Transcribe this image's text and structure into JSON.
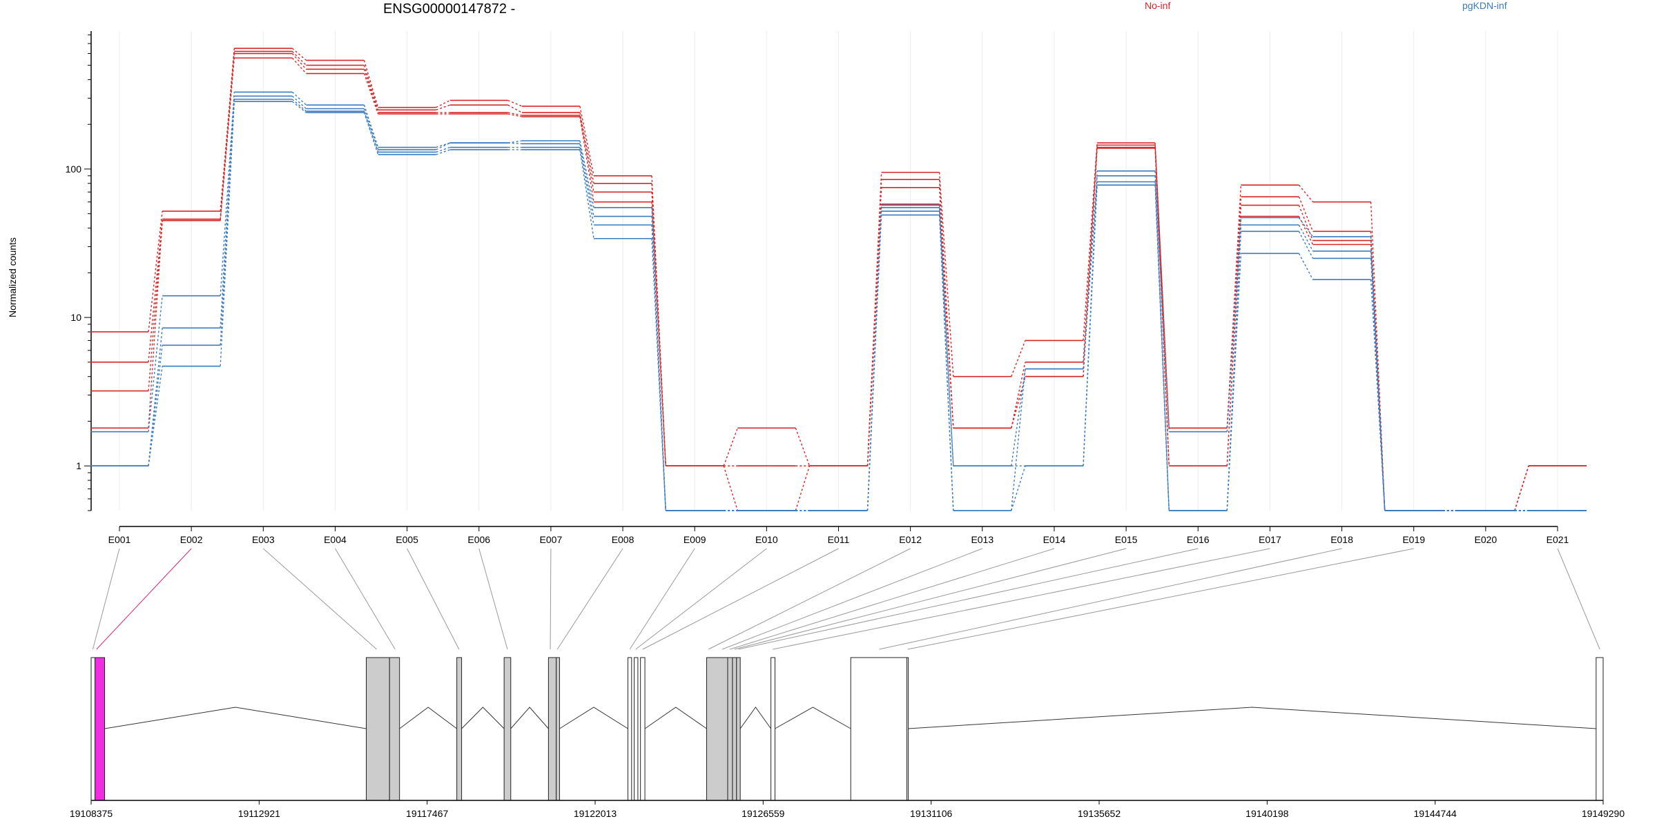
{
  "chart_data": {
    "type": "line",
    "title": "ENSG00000147872 -",
    "ylabel": "Normalized counts",
    "xlabel": "",
    "yscale": "log",
    "ylim": [
      0.5,
      850
    ],
    "y_ticks": [
      1,
      10,
      100
    ],
    "y_tick_labels": [
      "1",
      "10",
      "100"
    ],
    "grid": "vertical gridlines",
    "legend_position": "top",
    "categories": [
      "E001",
      "E002",
      "E003",
      "E004",
      "E005",
      "E006",
      "E007",
      "E008",
      "E009",
      "E010",
      "E011",
      "E012",
      "E013",
      "E014",
      "E015",
      "E016",
      "E017",
      "E018",
      "E019",
      "E020",
      "E021"
    ],
    "groups": [
      {
        "name": "No-inf",
        "color": "#d62728"
      },
      {
        "name": "pgKDN-inf",
        "color": "#3a7bbf"
      }
    ],
    "series": [
      {
        "group": "No-inf",
        "values": [
          8,
          52,
          650,
          540,
          260,
          290,
          265,
          90,
          1,
          1.8,
          1,
          95,
          4,
          7,
          150,
          1.8,
          78,
          60,
          0.5,
          0.5,
          1
        ]
      },
      {
        "group": "No-inf",
        "values": [
          5,
          46,
          620,
          500,
          250,
          270,
          240,
          80,
          1,
          1,
          1,
          85,
          1.8,
          5,
          145,
          1.8,
          65,
          38,
          0.5,
          0.5,
          1
        ]
      },
      {
        "group": "No-inf",
        "values": [
          3.2,
          45,
          600,
          470,
          240,
          240,
          230,
          70,
          1,
          1,
          1,
          75,
          1.8,
          4,
          140,
          1,
          57,
          33,
          0.5,
          0.5,
          1
        ]
      },
      {
        "group": "No-inf",
        "values": [
          1.8,
          45,
          560,
          440,
          235,
          235,
          225,
          60,
          1,
          0.5,
          1,
          58,
          1.8,
          4,
          138,
          1,
          48,
          31,
          0.5,
          0.5,
          1
        ]
      },
      {
        "group": "pgKDN-inf",
        "values": [
          1.7,
          14,
          330,
          270,
          140,
          150,
          155,
          55,
          0.5,
          0.5,
          0.5,
          57,
          1,
          1,
          97,
          1.7,
          47,
          35,
          0.5,
          0.5,
          0.5
        ]
      },
      {
        "group": "pgKDN-inf",
        "values": [
          1,
          8.5,
          310,
          255,
          135,
          150,
          148,
          48,
          0.5,
          0.5,
          0.5,
          55,
          1,
          4.5,
          90,
          0.5,
          42,
          28,
          0.5,
          0.5,
          0.5
        ]
      },
      {
        "group": "pgKDN-inf",
        "values": [
          1,
          6.5,
          295,
          245,
          130,
          140,
          140,
          42,
          0.5,
          0.5,
          0.5,
          52,
          0.5,
          4.5,
          82,
          0.5,
          38,
          25,
          0.5,
          0.5,
          0.5
        ]
      },
      {
        "group": "pgKDN-inf",
        "values": [
          1,
          4.7,
          285,
          240,
          125,
          135,
          135,
          34,
          0.5,
          0.5,
          0.5,
          49,
          0.5,
          1,
          78,
          0.5,
          27,
          18,
          0.5,
          0.5,
          0.5
        ]
      }
    ],
    "genomic_axis": {
      "range": [
        19108375,
        19149290
      ],
      "tick_labels": [
        "19108375",
        "19112921",
        "19117467",
        "19122013",
        "19126559",
        "19131106",
        "19135652",
        "19140198",
        "19144744",
        "19149290"
      ]
    },
    "gene_model": {
      "exons": [
        {
          "start": 19108375,
          "end": 19108480,
          "fill": "#ffffff",
          "exon_ids": [
            "E001"
          ]
        },
        {
          "start": 19108480,
          "end": 19108740,
          "fill": "#ee2ee0",
          "exon_ids": [
            "E002"
          ]
        },
        {
          "start": 19115820,
          "end": 19116450,
          "fill": "#cccccc",
          "exon_ids": [
            "E003"
          ]
        },
        {
          "start": 19116450,
          "end": 19116720,
          "fill": "#cccccc",
          "exon_ids": [
            "E004"
          ]
        },
        {
          "start": 19118270,
          "end": 19118400,
          "fill": "#cccccc",
          "exon_ids": [
            "E005"
          ]
        },
        {
          "start": 19119550,
          "end": 19119730,
          "fill": "#cccccc",
          "exon_ids": [
            "E006"
          ]
        },
        {
          "start": 19120750,
          "end": 19120960,
          "fill": "#cccccc",
          "exon_ids": [
            "E007"
          ]
        },
        {
          "start": 19120960,
          "end": 19121050,
          "fill": "#cccccc",
          "exon_ids": [
            "E008"
          ]
        },
        {
          "start": 19122900,
          "end": 19123000,
          "fill": "#ffffff",
          "exon_ids": [
            "E009"
          ]
        },
        {
          "start": 19123070,
          "end": 19123170,
          "fill": "#ffffff",
          "exon_ids": [
            "E010"
          ]
        },
        {
          "start": 19123240,
          "end": 19123360,
          "fill": "#ffffff",
          "exon_ids": [
            "E011"
          ]
        },
        {
          "start": 19125030,
          "end": 19125600,
          "fill": "#cccccc",
          "exon_ids": [
            "E012",
            "E013"
          ]
        },
        {
          "start": 19125600,
          "end": 19125730,
          "fill": "#cccccc",
          "exon_ids": [
            "E014"
          ]
        },
        {
          "start": 19125730,
          "end": 19125840,
          "fill": "#cccccc",
          "exon_ids": [
            "E015"
          ]
        },
        {
          "start": 19125840,
          "end": 19125940,
          "fill": "#cccccc",
          "exon_ids": [
            "E016"
          ]
        },
        {
          "start": 19126770,
          "end": 19126880,
          "fill": "#ffffff",
          "exon_ids": [
            "E017"
          ]
        },
        {
          "start": 19128930,
          "end": 19130450,
          "fill": "#ffffff",
          "exon_ids": [
            "E018"
          ]
        },
        {
          "start": 19130450,
          "end": 19130480,
          "fill": "#ffffff",
          "exon_ids": [
            "E019"
          ]
        },
        {
          "start": 19149100,
          "end": 19149290,
          "fill": "#ffffff",
          "exon_ids": [
            "E021"
          ]
        }
      ],
      "connector_targets": {
        "E001": 19108420,
        "E002": 19108520,
        "E003": 19116100,
        "E004": 19116600,
        "E005": 19118330,
        "E006": 19119640,
        "E007": 19120800,
        "E008": 19120990,
        "E009": 19122950,
        "E010": 19123110,
        "E011": 19123300,
        "E012": 19125080,
        "E013": 19125450,
        "E014": 19125660,
        "E015": 19125780,
        "E016": 19125890,
        "E017": 19126820,
        "E018": 19129700,
        "E019": 19130470,
        "E021": 19149200
      },
      "highlight_exon": "E002"
    }
  }
}
